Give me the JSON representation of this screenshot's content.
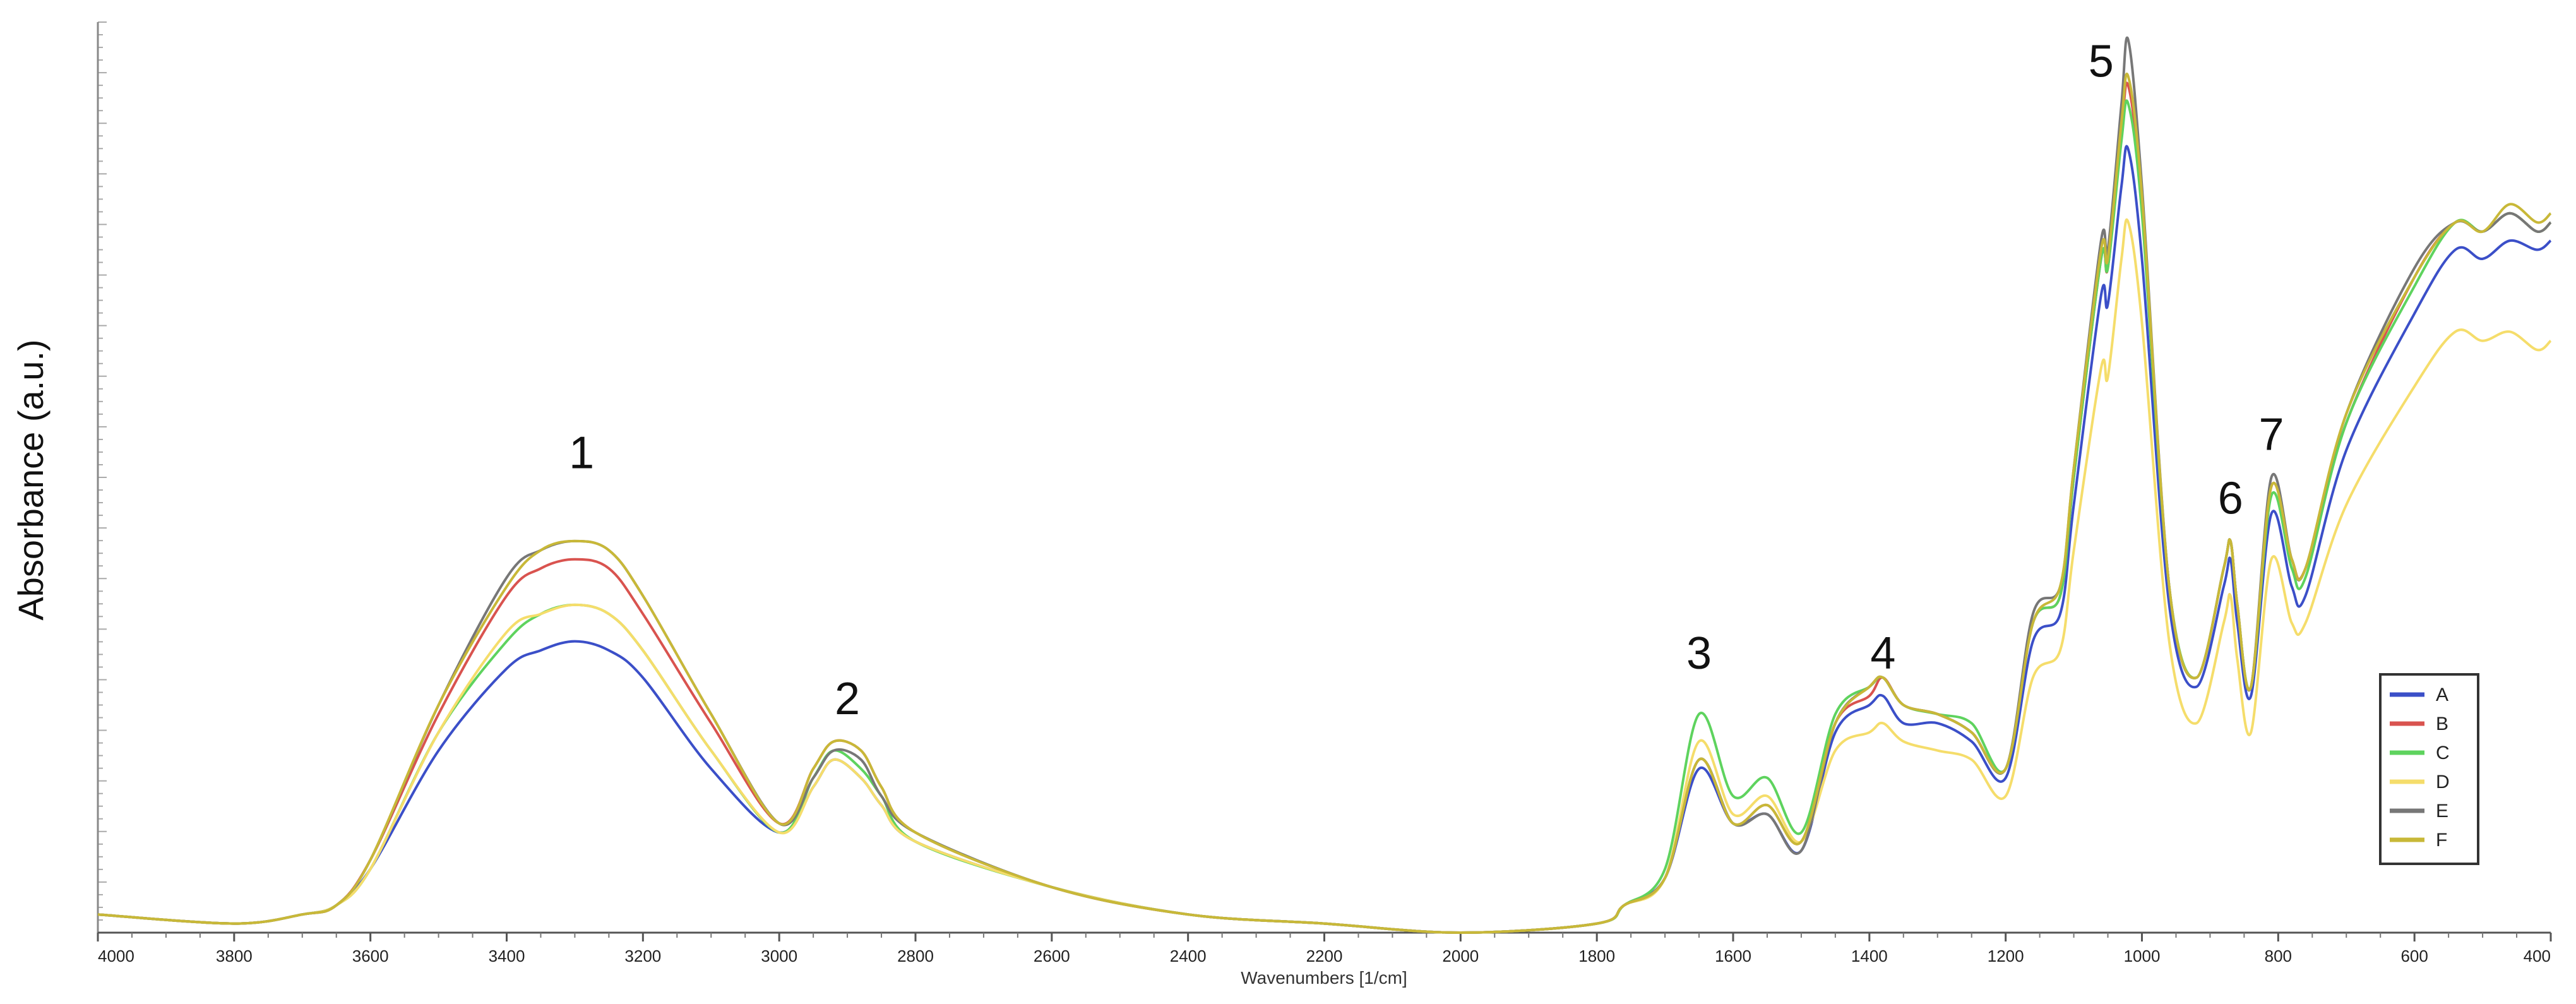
{
  "chart_data": {
    "type": "line",
    "title": "",
    "xlabel": "Wavenumbers [1/cm]",
    "ylabel": "Absorbance (a.u.)",
    "xlim": [
      4000,
      400
    ],
    "x_reversed": true,
    "ylim": [
      0,
      1
    ],
    "y_tick_labels_shown": false,
    "x_ticks": [
      4000,
      3800,
      3600,
      3400,
      3200,
      3000,
      2800,
      2600,
      2400,
      2200,
      2000,
      1800,
      1600,
      1400,
      1200,
      1000,
      800,
      600,
      400
    ],
    "legend": {
      "placement": "right",
      "entries": [
        "A",
        "B",
        "C",
        "D",
        "E",
        "F"
      ]
    },
    "annotations": [
      {
        "label": "1",
        "x": 3290,
        "y": 0.51
      },
      {
        "label": "2",
        "x": 2900,
        "y": 0.24
      },
      {
        "label": "3",
        "x": 1650,
        "y": 0.29
      },
      {
        "label": "4",
        "x": 1380,
        "y": 0.29
      },
      {
        "label": "5",
        "x": 1060,
        "y": 0.94
      },
      {
        "label": "6",
        "x": 870,
        "y": 0.46
      },
      {
        "label": "7",
        "x": 810,
        "y": 0.53
      }
    ],
    "x": [
      4000,
      3800,
      3700,
      3650,
      3600,
      3500,
      3400,
      3350,
      3300,
      3250,
      3200,
      3100,
      3000,
      2950,
      2920,
      2880,
      2850,
      2800,
      2600,
      2400,
      2200,
      2000,
      1800,
      1760,
      1700,
      1650,
      1600,
      1550,
      1500,
      1450,
      1400,
      1380,
      1350,
      1300,
      1250,
      1200,
      1160,
      1120,
      1100,
      1060,
      1050,
      1030,
      1020,
      1000,
      960,
      920,
      880,
      870,
      860,
      840,
      810,
      780,
      760,
      700,
      600,
      540,
      500,
      460,
      420,
      400
    ],
    "series": [
      {
        "name": "A",
        "color": "#3b4fc8",
        "values": [
          0.02,
          0.01,
          0.02,
          0.03,
          0.07,
          0.2,
          0.29,
          0.31,
          0.32,
          0.31,
          0.28,
          0.18,
          0.11,
          0.16,
          0.19,
          0.17,
          0.14,
          0.1,
          0.05,
          0.02,
          0.01,
          0.0,
          0.01,
          0.03,
          0.06,
          0.18,
          0.12,
          0.13,
          0.09,
          0.22,
          0.25,
          0.26,
          0.23,
          0.23,
          0.21,
          0.17,
          0.32,
          0.35,
          0.47,
          0.7,
          0.69,
          0.82,
          0.86,
          0.74,
          0.36,
          0.27,
          0.38,
          0.41,
          0.34,
          0.26,
          0.46,
          0.38,
          0.37,
          0.53,
          0.68,
          0.75,
          0.74,
          0.76,
          0.75,
          0.76
        ]
      },
      {
        "name": "B",
        "color": "#d9534f",
        "values": [
          0.02,
          0.01,
          0.02,
          0.03,
          0.08,
          0.24,
          0.37,
          0.4,
          0.41,
          0.4,
          0.35,
          0.23,
          0.12,
          0.18,
          0.21,
          0.2,
          0.16,
          0.11,
          0.05,
          0.02,
          0.01,
          0.0,
          0.01,
          0.03,
          0.06,
          0.19,
          0.12,
          0.14,
          0.1,
          0.23,
          0.26,
          0.28,
          0.25,
          0.24,
          0.22,
          0.18,
          0.34,
          0.37,
          0.5,
          0.74,
          0.73,
          0.88,
          0.93,
          0.8,
          0.38,
          0.28,
          0.4,
          0.43,
          0.36,
          0.27,
          0.49,
          0.41,
          0.4,
          0.56,
          0.72,
          0.78,
          0.77,
          0.79,
          0.77,
          0.78
        ]
      },
      {
        "name": "C",
        "color": "#5ed35e",
        "values": [
          0.02,
          0.01,
          0.02,
          0.03,
          0.07,
          0.22,
          0.32,
          0.35,
          0.36,
          0.35,
          0.31,
          0.2,
          0.11,
          0.17,
          0.2,
          0.18,
          0.15,
          0.1,
          0.05,
          0.02,
          0.01,
          0.0,
          0.01,
          0.03,
          0.07,
          0.24,
          0.15,
          0.17,
          0.11,
          0.24,
          0.27,
          0.28,
          0.25,
          0.24,
          0.23,
          0.18,
          0.34,
          0.37,
          0.5,
          0.74,
          0.73,
          0.87,
          0.91,
          0.79,
          0.38,
          0.28,
          0.4,
          0.43,
          0.36,
          0.27,
          0.48,
          0.4,
          0.39,
          0.56,
          0.71,
          0.78,
          0.77,
          0.79,
          0.77,
          0.78
        ]
      },
      {
        "name": "D",
        "color": "#f5dd6b",
        "values": [
          0.02,
          0.01,
          0.02,
          0.03,
          0.07,
          0.22,
          0.33,
          0.35,
          0.36,
          0.35,
          0.31,
          0.2,
          0.11,
          0.16,
          0.19,
          0.17,
          0.14,
          0.1,
          0.05,
          0.02,
          0.01,
          0.0,
          0.01,
          0.03,
          0.06,
          0.21,
          0.13,
          0.15,
          0.1,
          0.2,
          0.22,
          0.23,
          0.21,
          0.2,
          0.19,
          0.15,
          0.28,
          0.31,
          0.42,
          0.62,
          0.61,
          0.74,
          0.78,
          0.67,
          0.32,
          0.23,
          0.34,
          0.37,
          0.3,
          0.22,
          0.41,
          0.34,
          0.34,
          0.47,
          0.6,
          0.66,
          0.65,
          0.66,
          0.64,
          0.65
        ]
      },
      {
        "name": "E",
        "color": "#777777",
        "values": [
          0.02,
          0.01,
          0.02,
          0.03,
          0.08,
          0.25,
          0.39,
          0.42,
          0.43,
          0.42,
          0.37,
          0.24,
          0.12,
          0.17,
          0.2,
          0.19,
          0.15,
          0.11,
          0.05,
          0.02,
          0.01,
          0.0,
          0.01,
          0.03,
          0.06,
          0.19,
          0.12,
          0.13,
          0.09,
          0.23,
          0.27,
          0.28,
          0.25,
          0.24,
          0.22,
          0.18,
          0.35,
          0.38,
          0.51,
          0.76,
          0.75,
          0.91,
          0.98,
          0.82,
          0.38,
          0.28,
          0.4,
          0.43,
          0.36,
          0.27,
          0.5,
          0.41,
          0.4,
          0.57,
          0.73,
          0.78,
          0.77,
          0.79,
          0.77,
          0.78
        ]
      },
      {
        "name": "F",
        "color": "#c8b838",
        "values": [
          0.02,
          0.01,
          0.02,
          0.03,
          0.08,
          0.25,
          0.38,
          0.42,
          0.43,
          0.42,
          0.37,
          0.24,
          0.12,
          0.18,
          0.21,
          0.2,
          0.16,
          0.11,
          0.05,
          0.02,
          0.01,
          0.0,
          0.01,
          0.03,
          0.06,
          0.19,
          0.12,
          0.14,
          0.1,
          0.23,
          0.27,
          0.28,
          0.25,
          0.24,
          0.22,
          0.18,
          0.34,
          0.38,
          0.51,
          0.75,
          0.74,
          0.89,
          0.94,
          0.81,
          0.38,
          0.28,
          0.4,
          0.43,
          0.36,
          0.27,
          0.49,
          0.41,
          0.4,
          0.57,
          0.72,
          0.78,
          0.77,
          0.8,
          0.78,
          0.79
        ]
      }
    ]
  }
}
